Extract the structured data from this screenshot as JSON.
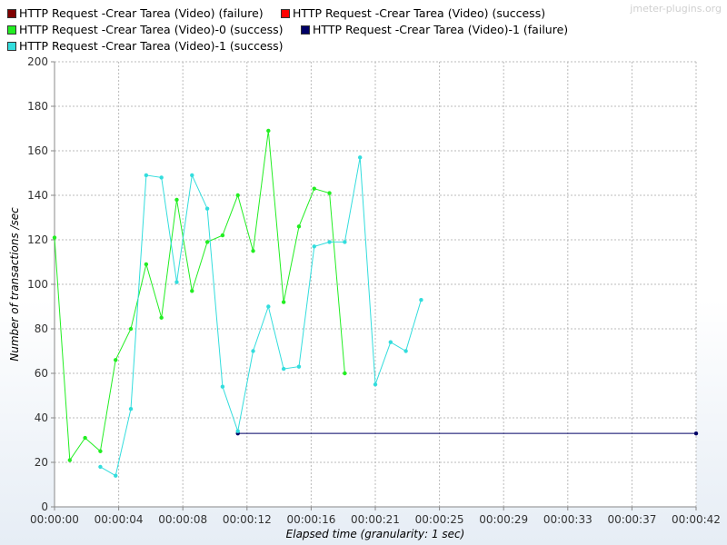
{
  "watermark": "jmeter-plugins.org",
  "chart_data": {
    "type": "line",
    "xlabel": "Elapsed time (granularity: 1 sec)",
    "ylabel": "Number of transactions /sec",
    "xlim": [
      0,
      42
    ],
    "ylim": [
      0,
      200
    ],
    "y_ticks": [
      0,
      20,
      40,
      60,
      80,
      100,
      120,
      140,
      160,
      180,
      200
    ],
    "x_ticks": [
      0,
      4.2,
      8.4,
      12.6,
      16.8,
      21,
      25.2,
      29.4,
      33.6,
      37.8,
      42
    ],
    "x_tick_labels": [
      "00:00:00",
      "00:00:04",
      "00:00:08",
      "00:00:12",
      "00:00:16",
      "00:00:21",
      "00:00:25",
      "00:00:29",
      "00:00:33",
      "00:00:37",
      "00:00:42"
    ],
    "grid": true,
    "legend_position": "top",
    "series": [
      {
        "name": "HTTP Request -Crear Tarea  (Video) (failure)",
        "color": "#800000",
        "x": [],
        "y": []
      },
      {
        "name": "HTTP Request -Crear Tarea  (Video) (success)",
        "color": "#ff0000",
        "x": [],
        "y": []
      },
      {
        "name": "HTTP Request -Crear Tarea  (Video)-0 (success)",
        "color": "#22ee22",
        "x": [
          0,
          1,
          2,
          3,
          4,
          5,
          6,
          7,
          8,
          9,
          10,
          11,
          12,
          13,
          14,
          15,
          16,
          17,
          18,
          19
        ],
        "y": [
          121,
          21,
          31,
          25,
          66,
          80,
          109,
          85,
          138,
          97,
          119,
          122,
          140,
          115,
          169,
          92,
          126,
          143,
          141,
          60
        ]
      },
      {
        "name": "HTTP Request -Crear Tarea  (Video)-1 (failure)",
        "color": "#000066",
        "x": [
          12,
          42
        ],
        "y": [
          33,
          33
        ]
      },
      {
        "name": "HTTP Request -Crear Tarea  (Video)-1 (success)",
        "color": "#33dddd",
        "x": [
          3,
          4,
          5,
          6,
          7,
          8,
          9,
          10,
          11,
          12,
          13,
          14,
          15,
          16,
          17,
          18,
          19,
          20,
          21,
          22,
          23,
          24
        ],
        "y": [
          18,
          14,
          44,
          149,
          148,
          101,
          149,
          134,
          54,
          34,
          70,
          90,
          62,
          63,
          117,
          119,
          119,
          157,
          55,
          74,
          70,
          93
        ]
      }
    ]
  }
}
